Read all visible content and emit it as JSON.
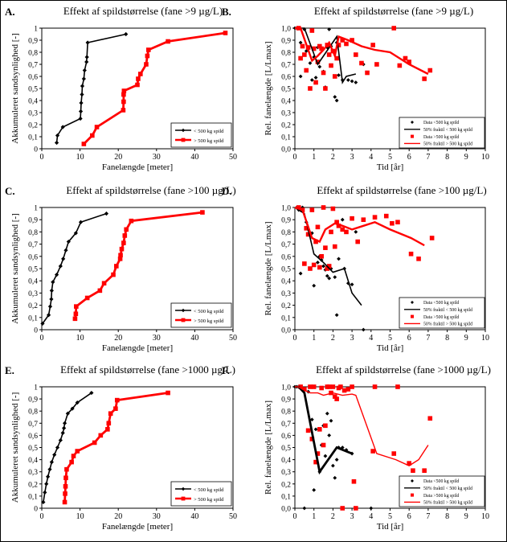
{
  "figure": {
    "ylabel_cdf": "Akkumuleret sandsynlighed [-]",
    "ylabel_rel": "Rel. fanelængde [L/Lmax]",
    "xlabel_cdf": "Fanelængde [meter]",
    "xlabel_rel": "Tid [år]"
  },
  "chart_data": [
    {
      "id": "A",
      "letter": "A.",
      "type": "line",
      "title": "Effekt af spildstørrelse (fane >9 µg/L)",
      "xlabel": "Fanelængde [meter]",
      "ylabel": "Akkumuleret sandsynlighed [-]",
      "xlim": [
        0,
        50
      ],
      "ylim": [
        0,
        1
      ],
      "xticks": [
        "0",
        "10",
        "20",
        "30",
        "40",
        "50"
      ],
      "yticks": [
        "0",
        "0,1",
        "0,2",
        "0,3",
        "0,4",
        "0,5",
        "0,6",
        "0,7",
        "0,8",
        "0,9",
        "1"
      ],
      "legend": [
        "< 500 kg spild",
        "> 500 kg spild"
      ],
      "series": [
        {
          "name": "< 500 kg spild",
          "color": "#000000",
          "x": [
            3.9,
            4.1,
            5.5,
            10.1,
            10.2,
            10.3,
            10.5,
            10.6,
            11.0,
            11.2,
            11.7,
            11.8,
            12.0,
            22.0
          ],
          "y": [
            0.05,
            0.11,
            0.18,
            0.25,
            0.31,
            0.38,
            0.45,
            0.52,
            0.58,
            0.65,
            0.72,
            0.76,
            0.88,
            0.95
          ]
        },
        {
          "name": "> 500 kg spild",
          "color": "#ff0000",
          "x": [
            11.0,
            13.2,
            14.4,
            21.3,
            21.4,
            21.4,
            21.5,
            25.0,
            25.2,
            25.8,
            27.3,
            27.6,
            27.9,
            33.0,
            48.0
          ],
          "y": [
            0.04,
            0.11,
            0.18,
            0.32,
            0.39,
            0.45,
            0.48,
            0.53,
            0.58,
            0.62,
            0.7,
            0.77,
            0.82,
            0.89,
            0.96
          ]
        }
      ]
    },
    {
      "id": "B",
      "letter": "B.",
      "type": "scatter",
      "title": "Effekt af spildstørrelse (fane >9 µg/L)",
      "xlabel": "Tid [år]",
      "ylabel": "Rel. fanelængde [L/Lmax]",
      "xlim": [
        0,
        10
      ],
      "ylim": [
        0,
        1
      ],
      "xticks": [
        "0",
        "1",
        "2",
        "3",
        "4",
        "5",
        "6",
        "7",
        "8",
        "9",
        "10"
      ],
      "yticks": [
        "0,0",
        "0,1",
        "0,2",
        "0,3",
        "0,4",
        "0,5",
        "0,6",
        "0,7",
        "0,8",
        "0,9",
        "1,0"
      ],
      "legend": [
        "Data <500 kg spild",
        "50% fraktil < 500 kg spild",
        "Data >500 kg spild",
        "50% fraktil > 500 kg spild"
      ],
      "points_small": {
        "name": "Data <500 kg spild",
        "color": "#000000",
        "x": [
          0.0,
          0.1,
          0.2,
          0.3,
          0.3,
          0.5,
          0.6,
          0.8,
          0.9,
          1.0,
          1.1,
          1.2,
          1.3,
          1.5,
          1.6,
          1.7,
          1.8,
          1.9,
          2.0,
          2.1,
          2.2,
          2.2,
          2.3,
          2.5,
          2.8,
          3.0,
          3.2,
          3.6
        ],
        "y": [
          1.0,
          1.0,
          1.0,
          0.88,
          0.6,
          0.99,
          0.81,
          0.71,
          0.57,
          0.76,
          0.59,
          0.84,
          0.68,
          0.64,
          0.51,
          0.84,
          0.99,
          0.85,
          0.81,
          0.43,
          0.4,
          0.88,
          0.61,
          0.57,
          0.57,
          0.56,
          0.55,
          0.7
        ]
      },
      "points_large": {
        "name": "Data >500 kg spild",
        "color": "#ff0000",
        "x": [
          0.2,
          0.3,
          0.4,
          0.5,
          0.6,
          0.7,
          0.8,
          0.9,
          1.0,
          1.1,
          1.2,
          1.3,
          1.4,
          1.5,
          1.6,
          1.7,
          1.8,
          1.9,
          2.0,
          2.1,
          2.2,
          2.3,
          2.5,
          2.7,
          3.0,
          3.2,
          3.5,
          3.8,
          4.1,
          4.3,
          5.2,
          5.5,
          5.8,
          6.0,
          6.8,
          7.1
        ],
        "y": [
          1.0,
          0.75,
          0.85,
          0.78,
          0.65,
          0.84,
          0.5,
          0.98,
          0.83,
          0.55,
          0.72,
          0.85,
          0.83,
          0.63,
          0.5,
          0.86,
          0.78,
          0.69,
          0.81,
          0.6,
          0.75,
          0.86,
          0.9,
          0.87,
          0.9,
          0.78,
          0.71,
          0.63,
          0.86,
          0.7,
          1.0,
          0.69,
          0.75,
          0.72,
          0.58,
          0.65
        ]
      },
      "lines": [
        {
          "name": "50% fraktil < 500 kg spild",
          "color": "#000000",
          "width": 1.6,
          "x": [
            0.0,
            0.5,
            1.2,
            2.2,
            2.5,
            2.7,
            3.2
          ],
          "y": [
            1.0,
            1.0,
            0.7,
            0.93,
            0.55,
            0.6,
            0.62
          ]
        },
        {
          "name": "50% fraktil > 500 kg spild",
          "color": "#ff0000",
          "width": 2.4,
          "x": [
            0.0,
            0.3,
            0.9,
            1.2,
            1.5,
            1.8,
            2.1,
            2.3,
            2.8,
            3.5,
            4.2,
            5.0,
            6.0,
            7.0
          ],
          "y": [
            1.0,
            1.0,
            0.73,
            0.77,
            0.82,
            0.88,
            0.77,
            0.93,
            0.9,
            0.85,
            0.82,
            0.8,
            0.7,
            0.62
          ]
        }
      ]
    },
    {
      "id": "C",
      "letter": "C.",
      "type": "line",
      "title": "Effekt af spildstørrelse (fane >100 µg/L)",
      "xlabel": "Fanelængde [meter]",
      "ylabel": "Akkumuleret sandsynlighed [-]",
      "xlim": [
        0,
        50
      ],
      "ylim": [
        0,
        1
      ],
      "xticks": [
        "0",
        "10",
        "20",
        "30",
        "40",
        "50"
      ],
      "yticks": [
        "0",
        "0,1",
        "0,2",
        "0,3",
        "0,4",
        "0,5",
        "0,6",
        "0,7",
        "0,8",
        "0,9",
        "1"
      ],
      "legend": [
        "< 500 kg spild",
        "> 500 kg spild"
      ],
      "series": [
        {
          "name": "< 500 kg spild",
          "color": "#000000",
          "x": [
            0.2,
            1.8,
            2.2,
            2.5,
            2.6,
            2.9,
            3.9,
            4.9,
            5.6,
            6.3,
            7.0,
            8.9,
            10.2,
            16.9
          ],
          "y": [
            0.05,
            0.12,
            0.19,
            0.25,
            0.32,
            0.39,
            0.45,
            0.52,
            0.58,
            0.65,
            0.72,
            0.79,
            0.88,
            0.95
          ]
        },
        {
          "name": "> 500 kg spild",
          "color": "#ff0000",
          "x": [
            8.7,
            8.9,
            9.0,
            11.9,
            15.2,
            16.3,
            18.7,
            19.5,
            20.5,
            20.6,
            20.9,
            21.4,
            21.7,
            22.1,
            23.4,
            42.0
          ],
          "y": [
            0.09,
            0.13,
            0.19,
            0.26,
            0.32,
            0.38,
            0.45,
            0.52,
            0.58,
            0.61,
            0.66,
            0.71,
            0.77,
            0.82,
            0.89,
            0.96
          ]
        }
      ]
    },
    {
      "id": "D",
      "letter": "D.",
      "type": "scatter",
      "title": "Effekt af spildstørrelse (fane >100 µg/L)",
      "xlabel": "Tid [år]",
      "ylabel": "Rel. fanelængde [L/Lmax]",
      "xlim": [
        0,
        10
      ],
      "ylim": [
        0,
        1
      ],
      "xticks": [
        "0",
        "1",
        "2",
        "3",
        "4",
        "5",
        "6",
        "7",
        "8",
        "9",
        "10"
      ],
      "yticks": [
        "0,0",
        "0,1",
        "0,2",
        "0,3",
        "0,4",
        "0,5",
        "0,6",
        "0,7",
        "0,8",
        "0,9",
        "1,0"
      ],
      "legend": [
        "Data <500 kg spild",
        "50% fraktil < 500 kg spild",
        "Data >500 kg spild",
        "50% fraktil > 500 kg spild"
      ],
      "points_small": {
        "name": "Data <500 kg spild",
        "color": "#000000",
        "x": [
          0.1,
          0.2,
          0.3,
          0.4,
          0.6,
          0.7,
          0.9,
          1.0,
          1.2,
          1.3,
          1.4,
          1.5,
          1.6,
          1.7,
          1.8,
          1.9,
          2.0,
          2.1,
          2.2,
          2.3,
          2.5,
          2.6,
          2.8,
          3.0,
          3.2,
          3.6
        ],
        "y": [
          1.0,
          0.98,
          0.46,
          1.0,
          0.88,
          0.82,
          0.79,
          0.36,
          0.55,
          0.6,
          0.57,
          0.52,
          0.49,
          0.44,
          0.42,
          0.5,
          0.99,
          0.43,
          0.12,
          0.58,
          0.9,
          0.5,
          0.38,
          0.37,
          0.8,
          0.0
        ]
      },
      "points_large": {
        "name": "Data >500 kg spild",
        "color": "#ff0000",
        "x": [
          0.2,
          0.4,
          0.5,
          0.6,
          0.7,
          0.8,
          0.9,
          1.0,
          1.1,
          1.2,
          1.3,
          1.4,
          1.5,
          1.6,
          1.7,
          1.8,
          1.9,
          2.0,
          2.1,
          2.2,
          2.3,
          2.5,
          2.7,
          3.0,
          3.3,
          3.6,
          4.2,
          4.8,
          5.1,
          5.4,
          6.1,
          6.5,
          7.2
        ],
        "y": [
          1.0,
          0.98,
          0.54,
          0.83,
          0.78,
          0.5,
          0.98,
          0.53,
          0.72,
          0.84,
          0.51,
          0.6,
          1.0,
          0.67,
          0.5,
          0.52,
          0.8,
          0.99,
          0.68,
          0.88,
          0.85,
          0.82,
          0.8,
          0.91,
          0.72,
          0.9,
          0.92,
          0.93,
          0.87,
          0.88,
          0.62,
          0.58,
          0.75
        ]
      },
      "lines": [
        {
          "name": "50% fraktil < 500 kg spild",
          "color": "#000000",
          "width": 1.6,
          "x": [
            0.0,
            0.5,
            1.0,
            1.5,
            2.0,
            2.6,
            3.0,
            3.5
          ],
          "y": [
            1.0,
            0.95,
            0.62,
            0.55,
            0.47,
            0.5,
            0.3,
            0.2
          ]
        },
        {
          "name": "50% fraktil > 500 kg spild",
          "color": "#ff0000",
          "width": 2.4,
          "x": [
            0.0,
            0.4,
            0.9,
            1.3,
            1.6,
            2.1,
            2.5,
            3.0,
            3.6,
            4.2,
            5.0,
            6.1,
            6.8
          ],
          "y": [
            1.0,
            0.98,
            0.75,
            0.72,
            0.82,
            0.87,
            0.85,
            0.82,
            0.85,
            0.88,
            0.82,
            0.75,
            0.69
          ]
        }
      ]
    },
    {
      "id": "E",
      "letter": "E.",
      "type": "line",
      "title": "Effekt af spildstørrelse (fane >1000 µg/L)",
      "xlabel": "Fanelængde [meter]",
      "ylabel": "Akkumuleret sandsynlighed [-]",
      "xlim": [
        0,
        50
      ],
      "ylim": [
        0,
        1
      ],
      "xticks": [
        "0",
        "10",
        "20",
        "30",
        "40",
        "50"
      ],
      "yticks": [
        "0",
        "0,1",
        "0,2",
        "0,3",
        "0,4",
        "0,5",
        "0,6",
        "0,7",
        "0,8",
        "0,9",
        "1"
      ],
      "legend": [
        "< 500 kg spild",
        "> 500 kg spild"
      ],
      "series": [
        {
          "name": "< 500 kg spild",
          "color": "#000000",
          "x": [
            0.4,
            0.8,
            1.2,
            1.6,
            2.1,
            2.6,
            3.3,
            4.1,
            4.9,
            5.5,
            5.8,
            6.0,
            6.8,
            8.0,
            9.3,
            13.0
          ],
          "y": [
            0.05,
            0.13,
            0.2,
            0.26,
            0.32,
            0.38,
            0.44,
            0.5,
            0.56,
            0.62,
            0.66,
            0.7,
            0.78,
            0.82,
            0.87,
            0.95
          ]
        },
        {
          "name": "> 500 kg spild",
          "color": "#ff0000",
          "x": [
            6.0,
            6.1,
            6.2,
            6.3,
            6.5,
            7.8,
            8.3,
            9.3,
            13.8,
            15.4,
            17.2,
            17.5,
            18.0,
            19.3,
            19.7,
            33.0
          ],
          "y": [
            0.05,
            0.12,
            0.18,
            0.25,
            0.32,
            0.38,
            0.43,
            0.47,
            0.54,
            0.6,
            0.65,
            0.7,
            0.78,
            0.82,
            0.89,
            0.95
          ]
        }
      ]
    },
    {
      "id": "F",
      "letter": "F.",
      "type": "scatter",
      "title": "Effekt af spildstørrelse (fane >1000 µg/L)",
      "xlabel": "Tid [år]",
      "ylabel": "Rel. fanelængde [L/Lmax]",
      "xlim": [
        0,
        10
      ],
      "ylim": [
        0,
        1
      ],
      "xticks": [
        "0",
        "1",
        "2",
        "3",
        "4",
        "5",
        "6",
        "7",
        "8",
        "9",
        "10"
      ],
      "yticks": [
        "0,0",
        "0,1",
        "0,2",
        "0,3",
        "0,4",
        "0,5",
        "0,6",
        "0,7",
        "0,8",
        "0,9",
        "1,0"
      ],
      "legend": [
        "Data <500 kg spild",
        "50% fraktil < 500 kg spild",
        "Data >500 kg spild",
        "50% fraktil > 500 kg spild"
      ],
      "points_small": {
        "name": "Data <500 kg spild",
        "color": "#000000",
        "x": [
          0.0,
          0.1,
          0.3,
          0.5,
          0.7,
          0.9,
          1.0,
          1.1,
          1.3,
          1.4,
          1.5,
          1.6,
          1.7,
          1.8,
          1.9,
          2.0,
          2.1,
          2.2,
          2.3,
          2.5,
          2.7,
          3.0,
          4.0
        ],
        "y": [
          1.0,
          1.0,
          0.99,
          0.0,
          0.96,
          0.73,
          0.15,
          0.65,
          0.3,
          0.52,
          0.68,
          0.43,
          0.78,
          0.6,
          0.72,
          0.35,
          0.25,
          0.4,
          0.5,
          0.5,
          0.48,
          0.45,
          0.0
        ]
      },
      "points_large": {
        "name": "Data >500 kg spild",
        "color": "#ff0000",
        "x": [
          0.3,
          0.5,
          0.7,
          0.8,
          0.9,
          1.0,
          1.1,
          1.2,
          1.3,
          1.4,
          1.5,
          1.6,
          1.7,
          1.8,
          1.9,
          2.0,
          2.1,
          2.2,
          2.3,
          2.4,
          2.5,
          2.6,
          2.8,
          3.0,
          3.1,
          3.2,
          4.1,
          4.2,
          5.2,
          5.4,
          6.0,
          6.2,
          6.8,
          7.1
        ],
        "y": [
          1.0,
          0.98,
          0.64,
          1.0,
          0.57,
          1.0,
          0.38,
          0.45,
          0.65,
          0.99,
          0.52,
          0.68,
          1.0,
          1.0,
          0.95,
          1.0,
          0.92,
          0.9,
          0.99,
          1.0,
          0.0,
          0.97,
          0.98,
          1.0,
          0.22,
          0.0,
          0.47,
          1.0,
          0.45,
          1.0,
          0.37,
          0.31,
          0.31,
          0.74
        ]
      },
      "lines": [
        {
          "name": "50% fraktil < 500 kg spild",
          "color": "#000000",
          "width": 2.8,
          "x": [
            0.0,
            0.2,
            0.5,
            1.3,
            2.2,
            3.0
          ],
          "y": [
            1.0,
            1.0,
            0.95,
            0.3,
            0.5,
            0.45
          ]
        },
        {
          "name": "50% fraktil > 500 kg spild",
          "color": "#ff0000",
          "width": 1.4,
          "x": [
            0.0,
            0.2,
            0.4,
            0.8,
            1.2,
            1.5,
            2.0,
            2.5,
            3.0,
            3.2,
            4.3,
            5.3,
            6.0,
            6.5,
            7.0
          ],
          "y": [
            1.0,
            1.0,
            0.98,
            0.95,
            0.95,
            0.93,
            0.95,
            0.93,
            0.94,
            0.93,
            0.45,
            0.4,
            0.35,
            0.4,
            0.52
          ]
        }
      ]
    }
  ]
}
